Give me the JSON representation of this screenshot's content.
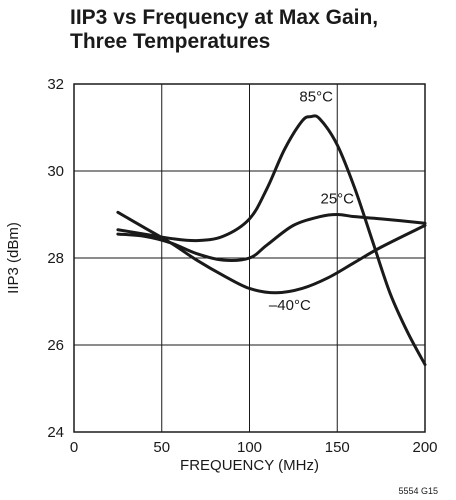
{
  "chart_data": {
    "type": "line",
    "title_lines": [
      "IIP3 vs Frequency at Max Gain,",
      "Three Temperatures"
    ],
    "xlabel": "FREQUENCY (MHz)",
    "ylabel": "IIP3 (dBm)",
    "xlim": [
      0,
      200
    ],
    "ylim": [
      24,
      32
    ],
    "xticks": [
      0,
      50,
      100,
      150,
      200
    ],
    "yticks": [
      24,
      26,
      28,
      30,
      32
    ],
    "grid": true,
    "series": [
      {
        "name": "85°C",
        "x": [
          25,
          40,
          55,
          70,
          85,
          100,
          110,
          120,
          130,
          135,
          140,
          150,
          160,
          170,
          180,
          190,
          200
        ],
        "y": [
          28.65,
          28.55,
          28.45,
          28.4,
          28.5,
          28.9,
          29.6,
          30.5,
          31.15,
          31.25,
          31.2,
          30.6,
          29.6,
          28.4,
          27.2,
          26.3,
          25.55
        ]
      },
      {
        "name": "25°C",
        "x": [
          25,
          40,
          55,
          70,
          85,
          100,
          110,
          125,
          140,
          150,
          160,
          175,
          200
        ],
        "y": [
          28.55,
          28.5,
          28.35,
          28.1,
          27.95,
          28.0,
          28.3,
          28.75,
          28.95,
          29.0,
          28.95,
          28.9,
          28.8
        ]
      },
      {
        "name": "–40°C",
        "x": [
          25,
          40,
          55,
          70,
          85,
          100,
          115,
          130,
          145,
          160,
          175,
          200
        ],
        "y": [
          29.05,
          28.7,
          28.35,
          27.95,
          27.6,
          27.3,
          27.2,
          27.3,
          27.55,
          27.9,
          28.25,
          28.75
        ]
      }
    ],
    "annotations": [
      {
        "text": "85°C",
        "x": 138,
        "y": 31.6
      },
      {
        "text": "25°C",
        "x": 150,
        "y": 29.25
      },
      {
        "text": "–40°C",
        "x": 123,
        "y": 26.8
      }
    ],
    "figure_code": "5554 G15"
  }
}
